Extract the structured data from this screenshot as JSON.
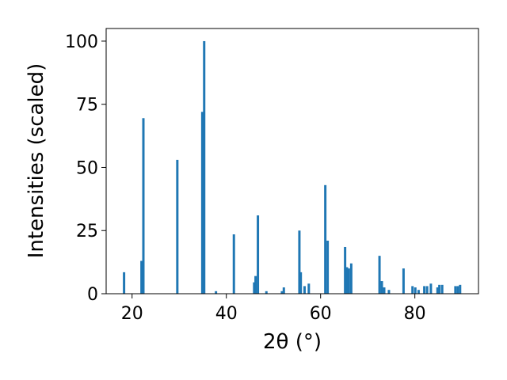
{
  "chart_data": {
    "type": "bar",
    "xlabel": "2θ (°)",
    "ylabel": "Intensities (scaled)",
    "xlim": [
      14.5,
      93.5
    ],
    "ylim": [
      0,
      105
    ],
    "bar_width": 0.5,
    "color": "#1f77b4",
    "grid": false,
    "xticks": [
      20,
      40,
      60,
      80
    ],
    "yticks": [
      0,
      25,
      50,
      75,
      100
    ],
    "x": [
      18.3,
      22.0,
      22.4,
      29.6,
      34.9,
      35.3,
      37.8,
      41.6,
      45.9,
      46.2,
      46.7,
      48.5,
      51.8,
      52.2,
      55.5,
      55.8,
      56.6,
      57.5,
      61.0,
      61.5,
      65.2,
      65.6,
      66.0,
      66.5,
      72.5,
      73.0,
      73.5,
      74.5,
      77.6,
      79.5,
      80.1,
      80.8,
      82.0,
      82.6,
      83.4,
      84.8,
      85.2,
      85.8,
      88.6,
      89.1,
      89.6
    ],
    "values": [
      8.5,
      13,
      69.5,
      53,
      72,
      100,
      1,
      23.5,
      4.5,
      7,
      31,
      1,
      1,
      2.5,
      25,
      8.5,
      3,
      4,
      43,
      21,
      18.5,
      10.5,
      10,
      12,
      15,
      5,
      2.5,
      1.5,
      10,
      3,
      2.5,
      1.5,
      3,
      3,
      4,
      2.5,
      3.5,
      3.5,
      3,
      3,
      3.5
    ]
  }
}
